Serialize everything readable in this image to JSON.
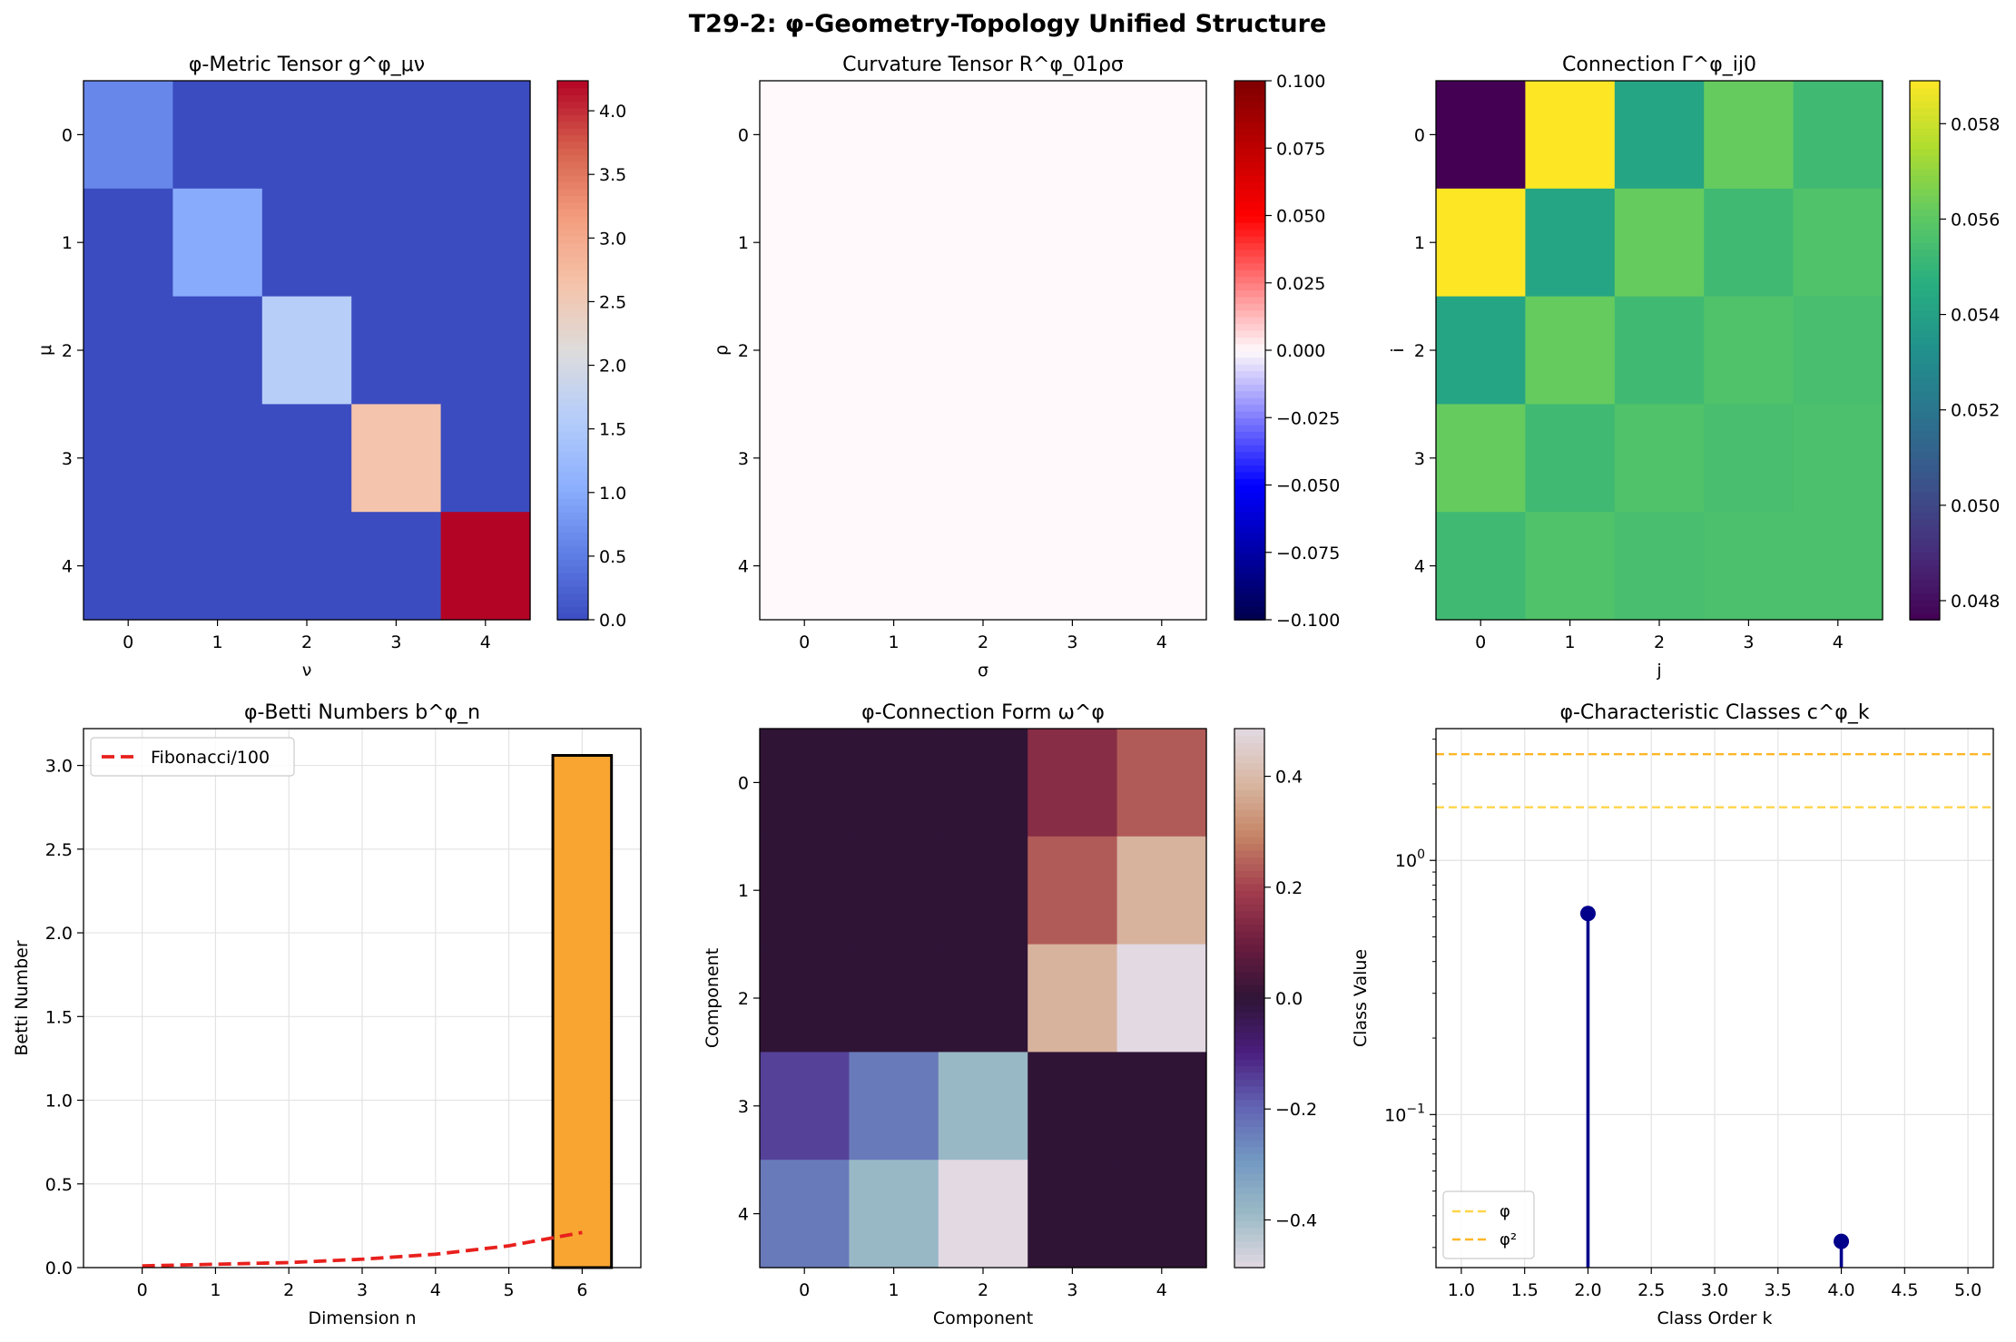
{
  "suptitle": "T29-2: φ-Geometry-Topology Unified Structure",
  "chart_data": [
    {
      "type": "heatmap",
      "title": "φ-Metric Tensor g^φ_μν",
      "xlabel": "ν",
      "ylabel": "μ",
      "x_ticks": [
        "0",
        "1",
        "2",
        "3",
        "4"
      ],
      "y_ticks": [
        "0",
        "1",
        "2",
        "3",
        "4"
      ],
      "colormap": "coolwarm",
      "vmin": 0.0,
      "vmax": 4.236,
      "colorbar_ticks": [
        "0.0",
        "0.5",
        "1.0",
        "1.5",
        "2.0",
        "2.5",
        "3.0",
        "3.5",
        "4.0"
      ],
      "colorbar_tick_values": [
        0,
        0.5,
        1,
        1.5,
        2,
        2.5,
        3,
        3.5,
        4
      ],
      "values": [
        [
          0.618,
          0,
          0,
          0,
          0
        ],
        [
          0,
          1.0,
          0,
          0,
          0
        ],
        [
          0,
          0,
          1.618,
          0,
          0
        ],
        [
          0,
          0,
          0,
          2.618,
          0
        ],
        [
          0,
          0,
          0,
          0,
          4.236
        ]
      ]
    },
    {
      "type": "heatmap",
      "title": "Curvature Tensor R^φ_01ρσ",
      "xlabel": "σ",
      "ylabel": "ρ",
      "x_ticks": [
        "0",
        "1",
        "2",
        "3",
        "4"
      ],
      "y_ticks": [
        "0",
        "1",
        "2",
        "3",
        "4"
      ],
      "colormap": "seismic",
      "vmin": -0.1,
      "vmax": 0.1,
      "colorbar_ticks": [
        "−0.100",
        "−0.075",
        "−0.050",
        "−0.025",
        "0.000",
        "0.025",
        "0.050",
        "0.075",
        "0.100"
      ],
      "colorbar_tick_values": [
        -0.1,
        -0.075,
        -0.05,
        -0.025,
        0,
        0.025,
        0.05,
        0.075,
        0.1
      ],
      "values": [
        [
          0,
          0,
          0,
          0,
          0
        ],
        [
          0,
          0,
          0,
          0,
          0
        ],
        [
          0,
          0,
          0,
          0,
          0
        ],
        [
          0,
          0,
          0,
          0,
          0
        ],
        [
          0,
          0,
          0,
          0,
          0
        ]
      ]
    },
    {
      "type": "heatmap",
      "title": "Connection Γ^φ_ij0",
      "xlabel": "j",
      "ylabel": "i",
      "x_ticks": [
        "0",
        "1",
        "2",
        "3",
        "4"
      ],
      "y_ticks": [
        "0",
        "1",
        "2",
        "3",
        "4"
      ],
      "colormap": "viridis",
      "vmin": 0.0476,
      "vmax": 0.0589,
      "colorbar_ticks": [
        "0.048",
        "0.050",
        "0.052",
        "0.054",
        "0.056",
        "0.058"
      ],
      "colorbar_tick_values": [
        0.048,
        0.05,
        0.052,
        0.054,
        0.056,
        0.058
      ],
      "values": [
        [
          0.0476,
          0.0589,
          0.0542,
          0.0562,
          0.0553
        ],
        [
          0.0589,
          0.0542,
          0.0562,
          0.0553,
          0.0557
        ],
        [
          0.0542,
          0.0562,
          0.0553,
          0.0557,
          0.0555
        ],
        [
          0.0562,
          0.0553,
          0.0557,
          0.0555,
          0.0556
        ],
        [
          0.0553,
          0.0557,
          0.0555,
          0.0556,
          0.0556
        ]
      ]
    },
    {
      "type": "bar",
      "title": "φ-Betti Numbers b^φ_n",
      "xlabel": "Dimension n",
      "ylabel": "Betti Number",
      "x_ticks": [
        "0",
        "1",
        "2",
        "3",
        "4",
        "5",
        "6"
      ],
      "y_ticks": [
        "0.0",
        "0.5",
        "1.0",
        "1.5",
        "2.0",
        "2.5",
        "3.0"
      ],
      "y_tick_values": [
        0,
        0.5,
        1,
        1.5,
        2,
        2.5,
        3
      ],
      "xlim": [
        -0.8,
        6.8
      ],
      "ylim": [
        0,
        3.22
      ],
      "grid": true,
      "bars": [
        {
          "x": 6,
          "value": 3.06,
          "color": "#f8a532"
        }
      ],
      "series": [
        {
          "name": "Fibonacci/100",
          "style": "dashed",
          "color": "#e8201d",
          "x": [
            0,
            1,
            2,
            3,
            4,
            5,
            6
          ],
          "values": [
            0.01,
            0.02,
            0.03,
            0.05,
            0.08,
            0.13,
            0.21
          ]
        }
      ],
      "legend": "top-left"
    },
    {
      "type": "heatmap",
      "title": "φ-Connection Form ω^φ",
      "xlabel": "Component",
      "ylabel": "Component",
      "x_ticks": [
        "0",
        "1",
        "2",
        "3",
        "4"
      ],
      "y_ticks": [
        "0",
        "1",
        "2",
        "3",
        "4"
      ],
      "colormap": "twilight_shifted",
      "vmin": -0.486,
      "vmax": 0.486,
      "colorbar_ticks": [
        "−0.4",
        "−0.2",
        "0.0",
        "0.2",
        "0.4"
      ],
      "colorbar_tick_values": [
        -0.4,
        -0.2,
        0,
        0.2,
        0.4
      ],
      "values": [
        [
          0,
          0,
          0,
          0.146,
          0.236
        ],
        [
          0,
          0,
          0,
          0.236,
          0.382
        ],
        [
          0,
          0,
          0,
          0.382,
          0.486
        ],
        [
          -0.146,
          -0.236,
          -0.382,
          0,
          0
        ],
        [
          -0.236,
          -0.382,
          -0.486,
          0,
          0
        ]
      ]
    },
    {
      "type": "scatter",
      "subtype": "stem",
      "title": "φ-Characteristic Classes c^φ_k",
      "xlabel": "Class Order k",
      "ylabel": "Class Value",
      "yscale": "log",
      "x_ticks": [
        "1.0",
        "1.5",
        "2.0",
        "2.5",
        "3.0",
        "3.5",
        "4.0",
        "4.5",
        "5.0"
      ],
      "x_tick_values": [
        1,
        1.5,
        2,
        2.5,
        3,
        3.5,
        4,
        4.5,
        5
      ],
      "y_ticks": [
        "10^0",
        "10^−1"
      ],
      "xlim": [
        0.8,
        5.2
      ],
      "ylim": [
        0.025,
        3.3
      ],
      "grid": true,
      "points": [
        {
          "x": 2,
          "y": 0.618
        },
        {
          "x": 4,
          "y": 0.0317
        }
      ],
      "hlines": [
        {
          "name": "φ",
          "y": 1.618,
          "color": "#ffd54a"
        },
        {
          "name": "φ²",
          "y": 2.618,
          "color": "#ffb627"
        }
      ],
      "legend": "bottom-left"
    }
  ]
}
